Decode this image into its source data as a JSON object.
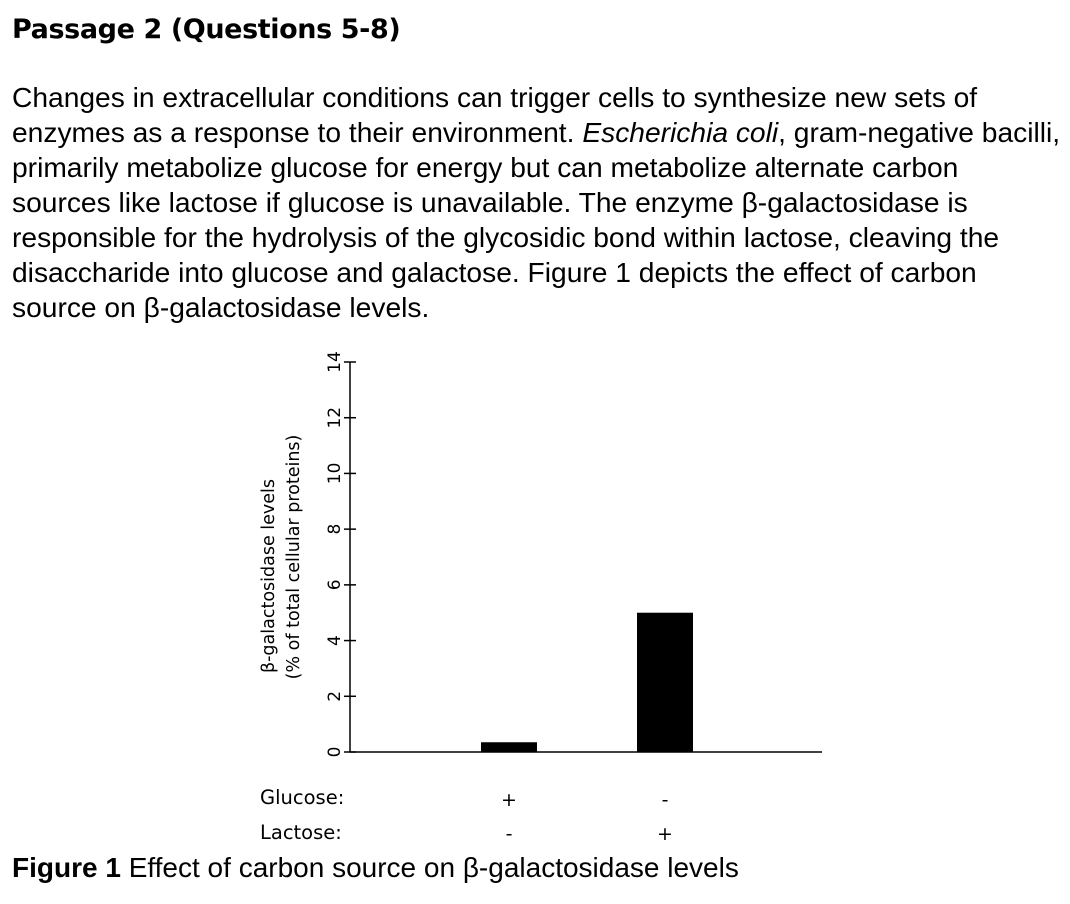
{
  "passage": {
    "title": "Passage 2 (Questions 5-8)",
    "text_part1": "Changes in extracellular conditions can trigger cells to synthesize new sets of enzymes as a response to their environment. ",
    "species": "Escherichia coli",
    "text_part2": ", gram-negative bacilli, primarily metabolize glucose for energy but can metabolize alternate carbon sources like lactose if glucose is unavailable. The enzyme β-galactosidase is responsible for the hydrolysis of the glycosidic bond within lactose, cleaving the disaccharide into glucose and galactose. Figure 1 depicts the effect of carbon source on β-galactosidase levels."
  },
  "figure": {
    "caption_label": "Figure 1",
    "caption_text": " Effect of carbon source on β-galactosidase levels"
  },
  "chart_data": {
    "type": "bar",
    "ylabel_line1": "β-galactosidase levels",
    "ylabel_line2": "(% of total cellular proteins)",
    "ylim": [
      0,
      14
    ],
    "yticks": [
      0,
      2,
      4,
      6,
      8,
      10,
      12,
      14
    ],
    "row_labels": [
      "Glucose:",
      "Lactose:"
    ],
    "categories": [
      {
        "glucose": "+",
        "lactose": "-"
      },
      {
        "glucose": "-",
        "lactose": "+"
      }
    ],
    "values": [
      0.35,
      5.0
    ],
    "bar_color": "#000000",
    "grid": false
  }
}
